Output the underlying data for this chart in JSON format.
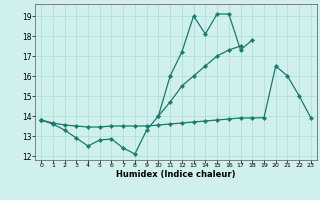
{
  "xlabel": "Humidex (Indice chaleur)",
  "x_values": [
    0,
    1,
    2,
    3,
    4,
    5,
    6,
    7,
    8,
    9,
    10,
    11,
    12,
    13,
    14,
    15,
    16,
    17,
    18,
    19,
    20,
    21,
    22,
    23
  ],
  "line1": [
    13.8,
    13.6,
    13.3,
    12.9,
    12.5,
    12.8,
    12.85,
    12.4,
    12.1,
    13.3,
    14.0,
    16.0,
    17.2,
    19.0,
    18.1,
    19.1,
    19.1,
    17.3,
    17.8,
    null,
    null,
    null,
    null,
    null
  ],
  "line2": [
    13.8,
    null,
    null,
    null,
    null,
    null,
    null,
    null,
    null,
    null,
    14.0,
    14.7,
    15.5,
    16.0,
    16.5,
    17.0,
    17.3,
    17.5,
    null,
    null,
    null,
    null,
    null,
    null
  ],
  "line3": [
    13.8,
    13.65,
    13.55,
    13.5,
    13.45,
    13.45,
    13.5,
    13.5,
    13.5,
    13.5,
    13.55,
    13.6,
    13.65,
    13.7,
    13.75,
    13.8,
    13.85,
    13.9,
    13.9,
    13.92,
    16.5,
    16.0,
    15.0,
    13.9
  ],
  "line_color": "#1a7a6e",
  "bg_color": "#cff0ec",
  "grid_color": "#aaddda",
  "ylim": [
    11.8,
    19.6
  ],
  "yticks": [
    12,
    13,
    14,
    15,
    16,
    17,
    18,
    19
  ],
  "xlim": [
    -0.5,
    23.5
  ],
  "xticks": [
    0,
    1,
    2,
    3,
    4,
    5,
    6,
    7,
    8,
    9,
    10,
    11,
    12,
    13,
    14,
    15,
    16,
    17,
    18,
    19,
    20,
    21,
    22,
    23
  ]
}
